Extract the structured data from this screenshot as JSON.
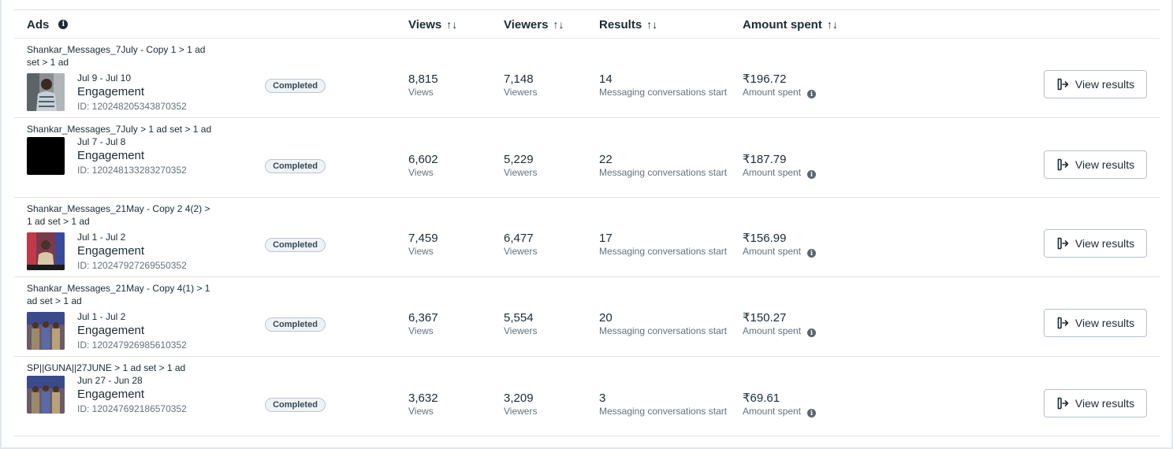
{
  "header": {
    "ads": "Ads",
    "views": "Views",
    "viewers": "Viewers",
    "results": "Results",
    "amount_spent": "Amount spent",
    "info_glyph": "i",
    "sort_glyph": "↑↓"
  },
  "status_label": "Completed",
  "objective": "Engagement",
  "labels": {
    "views": "Views",
    "viewers": "Viewers",
    "results": "Messaging conversations start",
    "amount_spent": "Amount spent",
    "view_results": "View results"
  },
  "rows": [
    {
      "name": "Shankar_Messages_7July - Copy 1 > 1 ad set > 1 ad",
      "dates": "Jul 9 - Jul 10",
      "id": "ID: 120248205343870352",
      "views": "8,815",
      "viewers": "7,148",
      "results": "14",
      "spent": "₹196.72",
      "thumb": "person-striped-shirt"
    },
    {
      "name": "Shankar_Messages_7July > 1 ad set > 1 ad",
      "dates": "Jul 7 - Jul 8",
      "id": "ID: 120248133283270352",
      "views": "6,602",
      "viewers": "5,229",
      "results": "22",
      "spent": "₹187.79",
      "thumb": "black"
    },
    {
      "name": "Shankar_Messages_21May - Copy 2 4(2) > 1 ad set > 1 ad",
      "dates": "Jul 1 - Jul 2",
      "id": "ID: 120247927269550352",
      "views": "7,459",
      "viewers": "6,477",
      "results": "17",
      "spent": "₹156.99",
      "thumb": "shop-person"
    },
    {
      "name": "Shankar_Messages_21May - Copy 4(1) > 1 ad set > 1 ad",
      "dates": "Jul 1 - Jul 2",
      "id": "ID: 120247926985610352",
      "views": "6,367",
      "viewers": "5,554",
      "results": "20",
      "spent": "₹150.27",
      "thumb": "group-people"
    },
    {
      "name": "SP||GUNA||27JUNE > 1 ad set > 1 ad",
      "dates": "Jun 27 - Jun 28",
      "id": "ID: 120247692186570352",
      "views": "3,632",
      "viewers": "3,209",
      "results": "3",
      "spent": "₹69.61",
      "thumb": "group-people"
    }
  ]
}
